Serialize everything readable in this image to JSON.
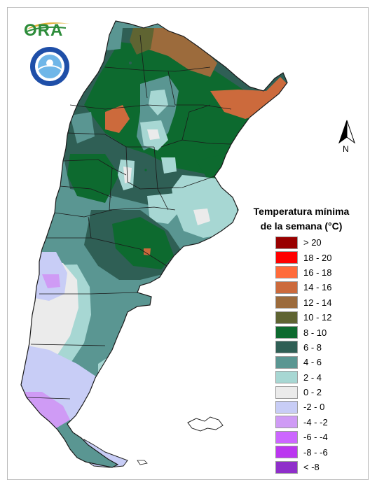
{
  "logo": {
    "ora_text": "ORA",
    "seal_text": "SERVICIO METEOROLÓGICO NACIONAL · ARGENTINA",
    "seal_abbrev": "SMN"
  },
  "north_arrow": {
    "label": "N"
  },
  "legend": {
    "title_line1": "Temperatura mínima",
    "title_line2": "de la semana (°C)",
    "items": [
      {
        "label": "> 20",
        "color": "#990000"
      },
      {
        "label": "18 - 20",
        "color": "#ff0000"
      },
      {
        "label": "16 - 18",
        "color": "#ff6b3a"
      },
      {
        "label": "14 - 16",
        "color": "#cc6a3c"
      },
      {
        "label": "12 - 14",
        "color": "#9c6b3c"
      },
      {
        "label": "10 - 12",
        "color": "#5f6432"
      },
      {
        "label": "8 - 10",
        "color": "#0d6a2f"
      },
      {
        "label": "6 - 8",
        "color": "#2f5f55"
      },
      {
        "label": "4 - 6",
        "color": "#5a9692"
      },
      {
        "label": "2 - 4",
        "color": "#a7d7d3"
      },
      {
        "label": "0 - 2",
        "color": "#ebebeb"
      },
      {
        "label": "-2 - 0",
        "color": "#c8cdf6"
      },
      {
        "label": "-4 - -2",
        "color": "#cf9bf5"
      },
      {
        "label": "-6 - -4",
        "color": "#cc66ff"
      },
      {
        "label": "-8 - -6",
        "color": "#bb36f0"
      },
      {
        "label": "< -8",
        "color": "#8f2fca"
      }
    ]
  }
}
